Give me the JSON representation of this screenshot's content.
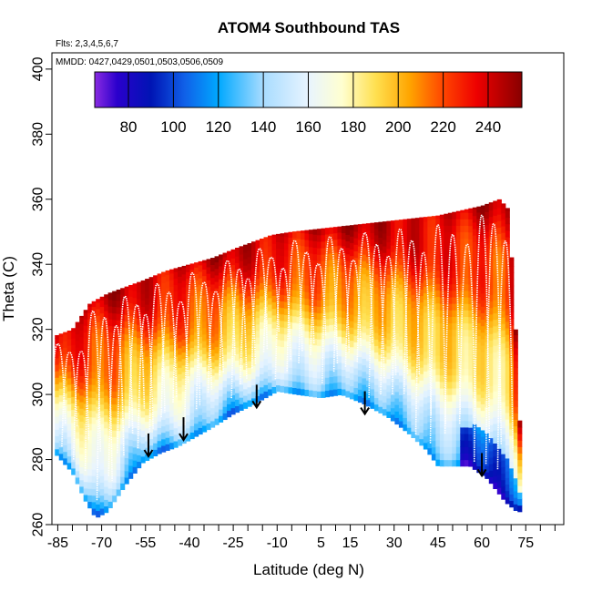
{
  "chart_data": {
    "type": "heatmap",
    "title": "ATOM4 Southbound TAS",
    "subtitle": "Flts: 2,3,4,5,6,7",
    "annotation": "MMDD: 0427,0429,0501,0503,0506,0509",
    "xlabel": "Latitude (deg N)",
    "ylabel": "Theta (C)",
    "xlim": [
      -87,
      88
    ],
    "ylim": [
      260,
      405
    ],
    "x_ticks": [
      -85,
      -70,
      -55,
      -40,
      -25,
      -10,
      5,
      15,
      30,
      45,
      60,
      75
    ],
    "x_minor_step": 5,
    "y_ticks": [
      260,
      280,
      300,
      320,
      340,
      360,
      380,
      400
    ],
    "colorbar": {
      "min": 65,
      "max": 255,
      "ticks": [
        80,
        100,
        120,
        140,
        160,
        180,
        200,
        220,
        240
      ],
      "stops": [
        {
          "value": 65,
          "color": "#8a2be2"
        },
        {
          "value": 75,
          "color": "#2a00cc"
        },
        {
          "value": 90,
          "color": "#0014b4"
        },
        {
          "value": 105,
          "color": "#1060e8"
        },
        {
          "value": 120,
          "color": "#00a8ff"
        },
        {
          "value": 140,
          "color": "#a8dcff"
        },
        {
          "value": 160,
          "color": "#e8f4ff"
        },
        {
          "value": 175,
          "color": "#ffffd0"
        },
        {
          "value": 190,
          "color": "#ffe050"
        },
        {
          "value": 205,
          "color": "#ffa500"
        },
        {
          "value": 220,
          "color": "#ff4500"
        },
        {
          "value": 235,
          "color": "#ee0000"
        },
        {
          "value": 255,
          "color": "#880000"
        }
      ]
    },
    "upper_boundary": [
      {
        "lat": -86,
        "theta": 318
      },
      {
        "lat": -80,
        "theta": 320
      },
      {
        "lat": -74,
        "theta": 328
      },
      {
        "lat": -68,
        "theta": 331
      },
      {
        "lat": -62,
        "theta": 333
      },
      {
        "lat": -56,
        "theta": 335
      },
      {
        "lat": -48,
        "theta": 338
      },
      {
        "lat": -40,
        "theta": 340
      },
      {
        "lat": -32,
        "theta": 342
      },
      {
        "lat": -24,
        "theta": 345
      },
      {
        "lat": -18,
        "theta": 347
      },
      {
        "lat": -12,
        "theta": 349
      },
      {
        "lat": -5,
        "theta": 350
      },
      {
        "lat": 5,
        "theta": 351
      },
      {
        "lat": 15,
        "theta": 352
      },
      {
        "lat": 25,
        "theta": 353
      },
      {
        "lat": 35,
        "theta": 354
      },
      {
        "lat": 45,
        "theta": 355
      },
      {
        "lat": 55,
        "theta": 357
      },
      {
        "lat": 60,
        "theta": 358
      },
      {
        "lat": 66,
        "theta": 360
      },
      {
        "lat": 69,
        "theta": 357
      },
      {
        "lat": 71,
        "theta": 330
      },
      {
        "lat": 73,
        "theta": 290
      }
    ],
    "lower_boundary": [
      {
        "lat": -86,
        "theta": 282
      },
      {
        "lat": -80,
        "theta": 276
      },
      {
        "lat": -76,
        "theta": 268
      },
      {
        "lat": -72,
        "theta": 262
      },
      {
        "lat": -68,
        "theta": 264
      },
      {
        "lat": -62,
        "theta": 272
      },
      {
        "lat": -56,
        "theta": 279
      },
      {
        "lat": -50,
        "theta": 282
      },
      {
        "lat": -44,
        "theta": 284
      },
      {
        "lat": -38,
        "theta": 287
      },
      {
        "lat": -32,
        "theta": 290
      },
      {
        "lat": -25,
        "theta": 294
      },
      {
        "lat": -18,
        "theta": 297
      },
      {
        "lat": -10,
        "theta": 301
      },
      {
        "lat": -3,
        "theta": 300
      },
      {
        "lat": 5,
        "theta": 299
      },
      {
        "lat": 12,
        "theta": 300
      },
      {
        "lat": 20,
        "theta": 297
      },
      {
        "lat": 28,
        "theta": 293
      },
      {
        "lat": 35,
        "theta": 288
      },
      {
        "lat": 41,
        "theta": 283
      },
      {
        "lat": 45,
        "theta": 278
      },
      {
        "lat": 52,
        "theta": 278
      },
      {
        "lat": 56,
        "theta": 278
      },
      {
        "lat": 62,
        "theta": 274
      },
      {
        "lat": 68,
        "theta": 267
      },
      {
        "lat": 72,
        "theta": 264
      }
    ],
    "flight_tracks_lat": [
      -85,
      -81,
      -77,
      -73,
      -69,
      -65,
      -62,
      -58,
      -55,
      -51,
      -47,
      -43,
      -39,
      -35,
      -31,
      -27,
      -23,
      -20,
      -16,
      -12,
      -8,
      -4,
      0,
      4,
      8,
      12,
      16,
      20,
      24,
      28,
      32,
      36,
      40,
      45,
      50,
      55,
      60,
      64,
      68
    ],
    "arrows": [
      {
        "lat": -54,
        "theta_top": 288,
        "theta_tip": 281
      },
      {
        "lat": -42,
        "theta_top": 293,
        "theta_tip": 286
      },
      {
        "lat": -17,
        "theta_top": 303,
        "theta_tip": 296
      },
      {
        "lat": 20,
        "theta_top": 301,
        "theta_tip": 294
      },
      {
        "lat": 60,
        "theta_top": 282,
        "theta_tip": 275
      }
    ]
  }
}
